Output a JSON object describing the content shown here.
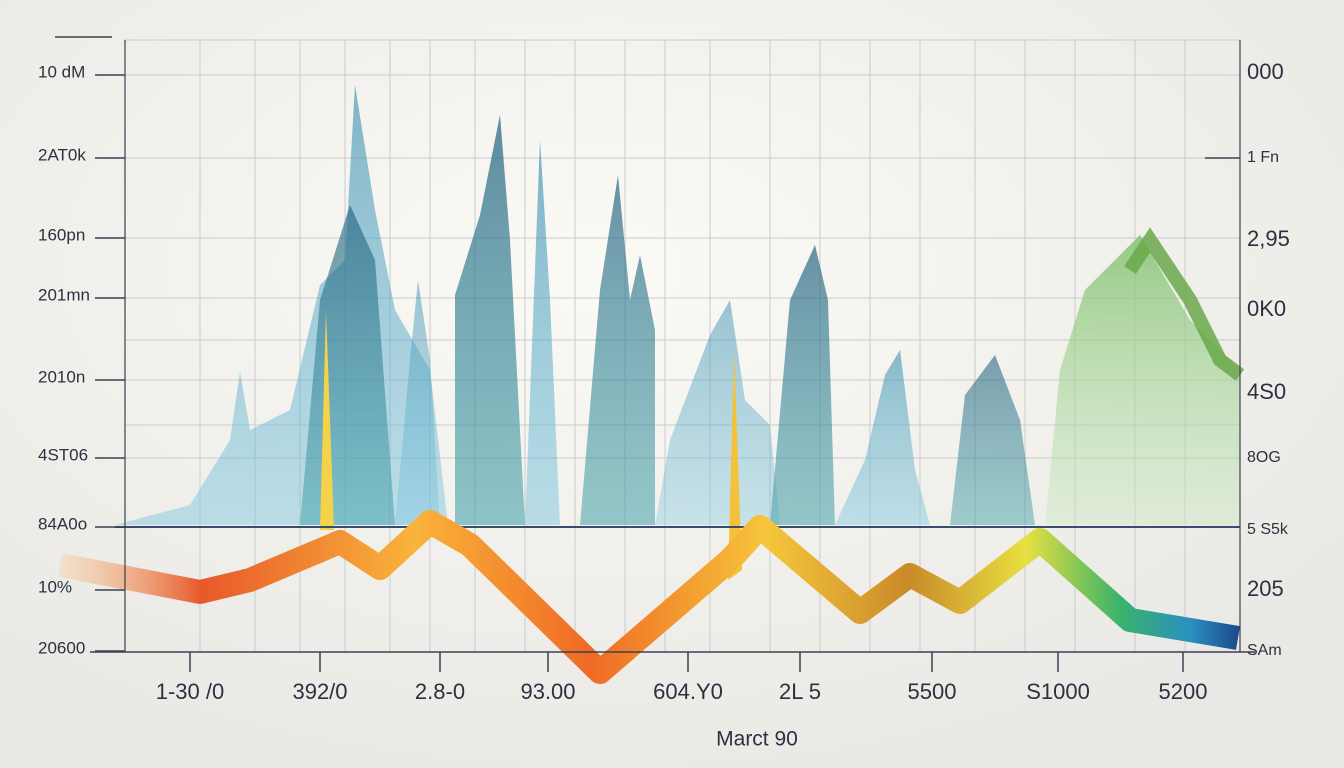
{
  "left_labels": [
    "10 dM",
    "2AT0k",
    "160pn",
    "201mn",
    "2010n",
    "4ST06",
    "84A0o",
    "10%",
    "20600"
  ],
  "right_labels": [
    "000",
    "1 Fn",
    "2,95",
    "0K0",
    "4S0",
    "8OG",
    "5 S5k",
    "205",
    "SAm"
  ],
  "x_labels": [
    "1-30 /0",
    "392/0",
    "2.8-0",
    "93.00",
    "604.Y0",
    "2L 5",
    "5500",
    "S1000",
    "5200"
  ],
  "x_title": "Marct 90"
}
